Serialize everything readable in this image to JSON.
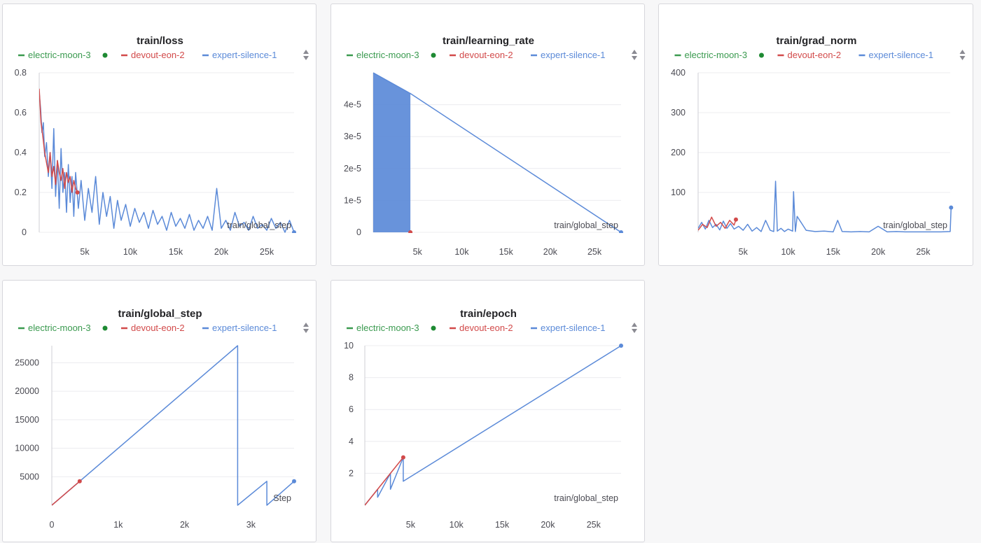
{
  "colors": {
    "run1": "#3a9a4f",
    "run2": "#d24a4a",
    "run3": "#5b8ad8",
    "grid": "#ececef",
    "axis": "#cfcfd4"
  },
  "legend": {
    "runs": [
      "electric-moon-3",
      "devout-eon-2",
      "expert-silence-1"
    ],
    "sort_icon": "sort-arrows-icon",
    "active_dot_icon": "active-run-dot-icon"
  },
  "chart_data": [
    {
      "id": "loss",
      "type": "line",
      "title": "train/loss",
      "xlabel": "train/global_step",
      "xlim": [
        0,
        28000
      ],
      "ylim": [
        0,
        0.8
      ],
      "xticks": [
        5000,
        10000,
        15000,
        20000,
        25000
      ],
      "xtick_labels": [
        "5k",
        "10k",
        "15k",
        "20k",
        "25k"
      ],
      "yticks": [
        0,
        0.2,
        0.4,
        0.6,
        0.8
      ],
      "ytick_labels": [
        "0",
        "0.2",
        "0.4",
        "0.6",
        "0.8"
      ],
      "series": [
        {
          "name": "devout-eon-2",
          "color_key": "run2",
          "x": [
            0,
            200,
            400,
            600,
            800,
            1000,
            1200,
            1400,
            1600,
            1800,
            2000,
            2200,
            2400,
            2600,
            2800,
            3000,
            3200,
            3400,
            3600,
            3800,
            4000,
            4200
          ],
          "y": [
            0.72,
            0.55,
            0.48,
            0.4,
            0.35,
            0.3,
            0.4,
            0.28,
            0.33,
            0.24,
            0.36,
            0.3,
            0.26,
            0.32,
            0.22,
            0.3,
            0.25,
            0.28,
            0.2,
            0.26,
            0.22,
            0.2
          ]
        },
        {
          "name": "expert-silence-1",
          "color_key": "run3",
          "x": [
            0,
            150,
            300,
            450,
            600,
            800,
            1000,
            1200,
            1400,
            1600,
            1800,
            2000,
            2200,
            2400,
            2600,
            2800,
            3000,
            3200,
            3400,
            3600,
            3800,
            4000,
            4300,
            4600,
            5000,
            5400,
            5800,
            6200,
            6600,
            7000,
            7400,
            7800,
            8200,
            8600,
            9000,
            9500,
            10000,
            10500,
            11000,
            11500,
            12000,
            12500,
            13000,
            13500,
            14000,
            14500,
            15000,
            15500,
            16000,
            16500,
            17000,
            17500,
            18000,
            18500,
            19000,
            19500,
            20000,
            20500,
            21000,
            21500,
            22000,
            22500,
            23000,
            23500,
            24000,
            24500,
            25000,
            25500,
            26000,
            26500,
            27000,
            27500,
            28000
          ],
          "y": [
            0.7,
            0.62,
            0.5,
            0.55,
            0.38,
            0.45,
            0.28,
            0.4,
            0.22,
            0.52,
            0.18,
            0.36,
            0.12,
            0.42,
            0.2,
            0.3,
            0.1,
            0.34,
            0.15,
            0.28,
            0.08,
            0.3,
            0.12,
            0.26,
            0.06,
            0.22,
            0.1,
            0.28,
            0.04,
            0.2,
            0.08,
            0.18,
            0.02,
            0.16,
            0.06,
            0.14,
            0.03,
            0.12,
            0.05,
            0.1,
            0.02,
            0.11,
            0.04,
            0.08,
            0.01,
            0.1,
            0.03,
            0.07,
            0.02,
            0.09,
            0.01,
            0.06,
            0.02,
            0.08,
            0.01,
            0.22,
            0.02,
            0.06,
            0.01,
            0.1,
            0.03,
            0.05,
            0.01,
            0.08,
            0.02,
            0.04,
            0.01,
            0.07,
            0.02,
            0.05,
            0.0,
            0.06,
            0.0
          ]
        }
      ]
    },
    {
      "id": "learning_rate",
      "type": "line",
      "title": "train/learning_rate",
      "xlabel": "train/global_step",
      "xlim": [
        0,
        28000
      ],
      "ylim": [
        0,
        5e-05
      ],
      "xticks": [
        5000,
        10000,
        15000,
        20000,
        25000
      ],
      "xtick_labels": [
        "5k",
        "10k",
        "15k",
        "20k",
        "25k"
      ],
      "yticks": [
        0,
        1e-05,
        2e-05,
        3e-05,
        4e-05
      ],
      "ytick_labels": [
        "0",
        "1e-5",
        "2e-5",
        "3e-5",
        "4e-5"
      ],
      "series": [
        {
          "name": "devout-eon-2",
          "color_key": "run2",
          "x": [
            4200
          ],
          "y": [
            0.0
          ]
        },
        {
          "name": "expert-silence-1",
          "color_key": "run3",
          "x": [
            0,
            4200,
            28000
          ],
          "y": [
            5e-05,
            4.35e-05,
            0.0
          ]
        }
      ],
      "band": {
        "x": [
          0,
          4200
        ],
        "y_low": [
          0.0,
          0.0
        ],
        "y_high": [
          5e-05,
          4.35e-05
        ]
      }
    },
    {
      "id": "grad_norm",
      "type": "line",
      "title": "train/grad_norm",
      "xlabel": "train/global_step",
      "xlim": [
        0,
        28000
      ],
      "ylim": [
        0,
        400
      ],
      "xticks": [
        5000,
        10000,
        15000,
        20000,
        25000
      ],
      "xtick_labels": [
        "5k",
        "10k",
        "15k",
        "20k",
        "25k"
      ],
      "yticks": [
        100,
        200,
        300,
        400
      ],
      "ytick_labels": [
        "100",
        "200",
        "300",
        "400"
      ],
      "series": [
        {
          "name": "devout-eon-2",
          "color_key": "run2",
          "x": [
            0,
            500,
            1000,
            1500,
            2000,
            2500,
            3000,
            3500,
            4000,
            4200
          ],
          "y": [
            5,
            20,
            12,
            38,
            15,
            25,
            10,
            30,
            18,
            32
          ]
        },
        {
          "name": "expert-silence-1",
          "color_key": "run3",
          "x": [
            0,
            400,
            800,
            1200,
            1600,
            2000,
            2400,
            2800,
            3200,
            3600,
            4000,
            4500,
            5000,
            5500,
            6000,
            6500,
            7000,
            7500,
            8000,
            8400,
            8600,
            8800,
            9200,
            9600,
            10000,
            10500,
            10600,
            10800,
            11000,
            12000,
            13000,
            14000,
            15000,
            15500,
            16000,
            17000,
            18000,
            19000,
            20000,
            21000,
            22000,
            23000,
            24000,
            25000,
            26000,
            27000,
            28000,
            28100
          ],
          "y": [
            10,
            25,
            8,
            30,
            12,
            20,
            6,
            28,
            10,
            22,
            8,
            15,
            5,
            20,
            3,
            12,
            2,
            30,
            5,
            2,
            128,
            3,
            10,
            2,
            8,
            3,
            102,
            2,
            40,
            5,
            2,
            3,
            1,
            30,
            2,
            1,
            2,
            1,
            15,
            1,
            2,
            1,
            1,
            1,
            1,
            1,
            2,
            62
          ]
        }
      ]
    },
    {
      "id": "global_step",
      "type": "line",
      "title": "train/global_step",
      "xlabel": "Step",
      "xlim": [
        0,
        3650
      ],
      "ylim": [
        0,
        28000
      ],
      "xticks": [
        0,
        1000,
        2000,
        3000
      ],
      "xtick_labels": [
        "0",
        "1k",
        "2k",
        "3k"
      ],
      "yticks": [
        5000,
        10000,
        15000,
        20000,
        25000
      ],
      "ytick_labels": [
        "5000",
        "10000",
        "15000",
        "20000",
        "25000"
      ],
      "series": [
        {
          "name": "devout-eon-2",
          "color_key": "run2",
          "x": [
            0,
            420
          ],
          "y": [
            0,
            4200
          ]
        },
        {
          "name": "expert-silence-1",
          "color_key": "run3",
          "x": [
            0,
            2800,
            2800,
            3240,
            3240,
            3650
          ],
          "y": [
            0,
            28000,
            0,
            4200,
            0,
            4200
          ]
        }
      ]
    },
    {
      "id": "epoch",
      "type": "line",
      "title": "train/epoch",
      "xlabel": "train/global_step",
      "xlim": [
        0,
        28000
      ],
      "ylim": [
        0,
        10
      ],
      "xticks": [
        5000,
        10000,
        15000,
        20000,
        25000
      ],
      "xtick_labels": [
        "5k",
        "10k",
        "15k",
        "20k",
        "25k"
      ],
      "yticks": [
        2,
        4,
        6,
        8,
        10
      ],
      "ytick_labels": [
        "2",
        "4",
        "6",
        "8",
        "10"
      ],
      "series": [
        {
          "name": "devout-eon-2",
          "color_key": "run2",
          "x": [
            0,
            4200
          ],
          "y": [
            0,
            3.0
          ]
        },
        {
          "name": "expert-silence-1",
          "color_key": "run3",
          "x": [
            0,
            1400,
            1400,
            2800,
            2800,
            4200,
            4200,
            28000
          ],
          "y": [
            0,
            1.0,
            0.5,
            2.0,
            1.0,
            3.0,
            1.5,
            10.0
          ]
        }
      ]
    }
  ]
}
